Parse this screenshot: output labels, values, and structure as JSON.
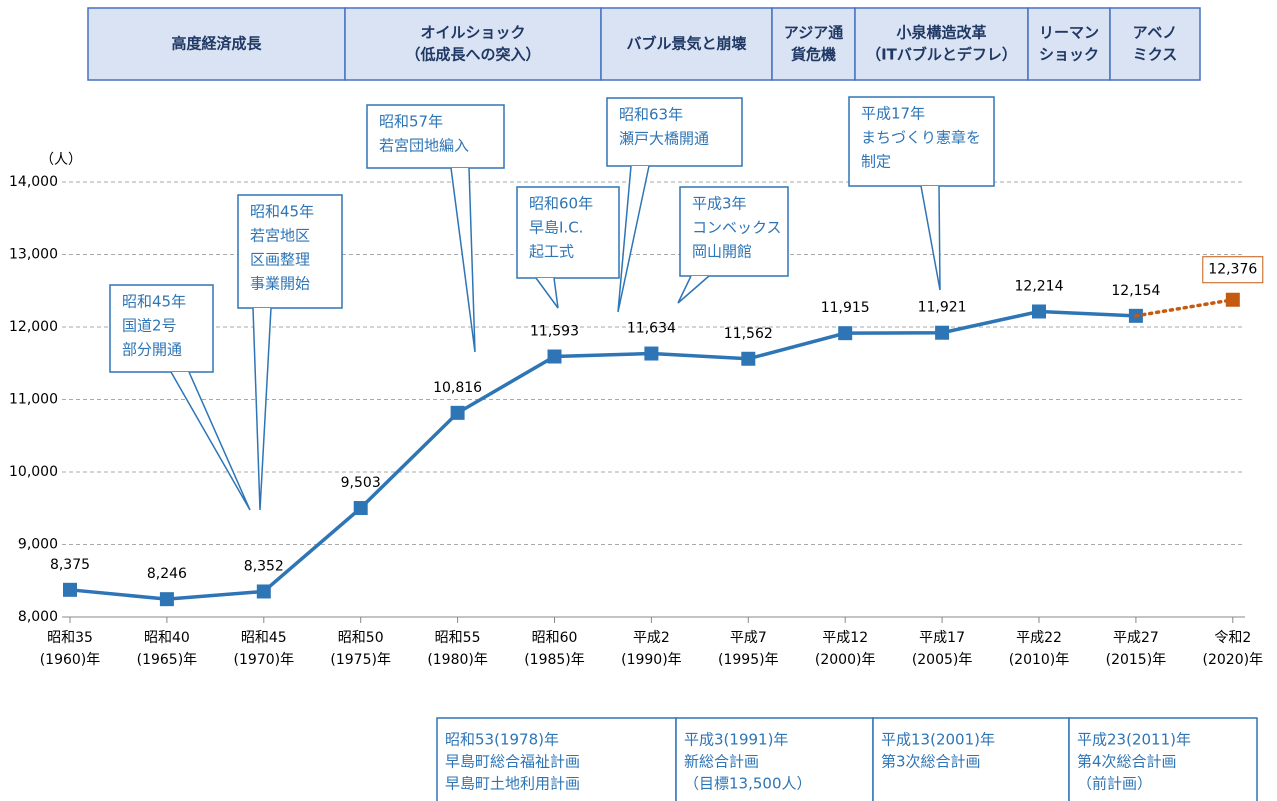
{
  "eras": [
    [
      "高度経済成長"
    ],
    [
      "オイルショック",
      "（低成長への突入）"
    ],
    [
      "バブル景気と崩壊"
    ],
    [
      "アジア通",
      "貨危機"
    ],
    [
      "小泉構造改革",
      "（ITバブルとデフレ）"
    ],
    [
      "リーマン",
      "ショック"
    ],
    [
      "アベノ",
      "ミクス"
    ]
  ],
  "callouts": [
    [
      "昭和45年",
      "国道2号",
      "部分開通"
    ],
    [
      "昭和45年",
      "若宮地区",
      "区画整理",
      "事業開始"
    ],
    [
      "昭和57年",
      "若宮団地編入"
    ],
    [
      "昭和60年",
      "早島I.C.",
      "起工式"
    ],
    [
      "昭和63年",
      "瀬戸大橋開通"
    ],
    [
      "平成3年",
      "コンベックス",
      "岡山開館"
    ],
    [
      "平成17年",
      "まちづくり憲章を",
      "制定"
    ]
  ],
  "plans": [
    [
      "昭和53(1978)年",
      "早島町総合福祉計画",
      "早島町土地利用計画"
    ],
    [
      "平成3(1991)年",
      "新総合計画",
      "（目標13,500人）"
    ],
    [
      "平成13(2001)年",
      "第3次総合計画"
    ],
    [
      "平成23(2011)年",
      "第4次総合計画",
      "（前計画）"
    ]
  ],
  "chart_data": {
    "type": "line",
    "y_label": "（人）",
    "categories": [
      [
        "昭和35",
        "(1960)年"
      ],
      [
        "昭和40",
        "(1965)年"
      ],
      [
        "昭和45",
        "(1970)年"
      ],
      [
        "昭和50",
        "(1975)年"
      ],
      [
        "昭和55",
        "(1980)年"
      ],
      [
        "昭和60",
        "(1985)年"
      ],
      [
        "平成2",
        "(1990)年"
      ],
      [
        "平成7",
        "(1995)年"
      ],
      [
        "平成12",
        "(2000)年"
      ],
      [
        "平成17",
        "(2005)年"
      ],
      [
        "平成22",
        "(2010)年"
      ],
      [
        "平成27",
        "(2015)年"
      ],
      [
        "令和2",
        "(2020)年"
      ]
    ],
    "series": [
      {
        "color": "#2e75b6",
        "values": [
          8375,
          8246,
          8352,
          9503,
          10816,
          11593,
          11634,
          11562,
          11915,
          11921,
          12214,
          12154,
          null
        ],
        "value_labels": [
          "8,375",
          "8,246",
          "8,352",
          "9,503",
          "10,816",
          "11,593",
          "11,634",
          "11,562",
          "11,915",
          "11,921",
          "12,214",
          "12,154",
          null
        ]
      },
      {
        "color": "#c55a11",
        "dashed": true,
        "values": [
          null,
          null,
          null,
          null,
          null,
          null,
          null,
          null,
          null,
          null,
          null,
          null,
          12376
        ],
        "value_labels": [
          null,
          null,
          null,
          null,
          null,
          null,
          null,
          null,
          null,
          null,
          null,
          null,
          "12,376"
        ]
      }
    ],
    "ylim": [
      8000,
      14000
    ],
    "yticks": [
      {
        "value": 8000,
        "label": "8,000"
      },
      {
        "value": 9000,
        "label": "9,000"
      },
      {
        "value": 10000,
        "label": "10,000"
      },
      {
        "value": 11000,
        "label": "11,000"
      },
      {
        "value": 12000,
        "label": "12,000"
      },
      {
        "value": 13000,
        "label": "13,000"
      },
      {
        "value": 14000,
        "label": "14,000"
      }
    ],
    "grid": true
  }
}
